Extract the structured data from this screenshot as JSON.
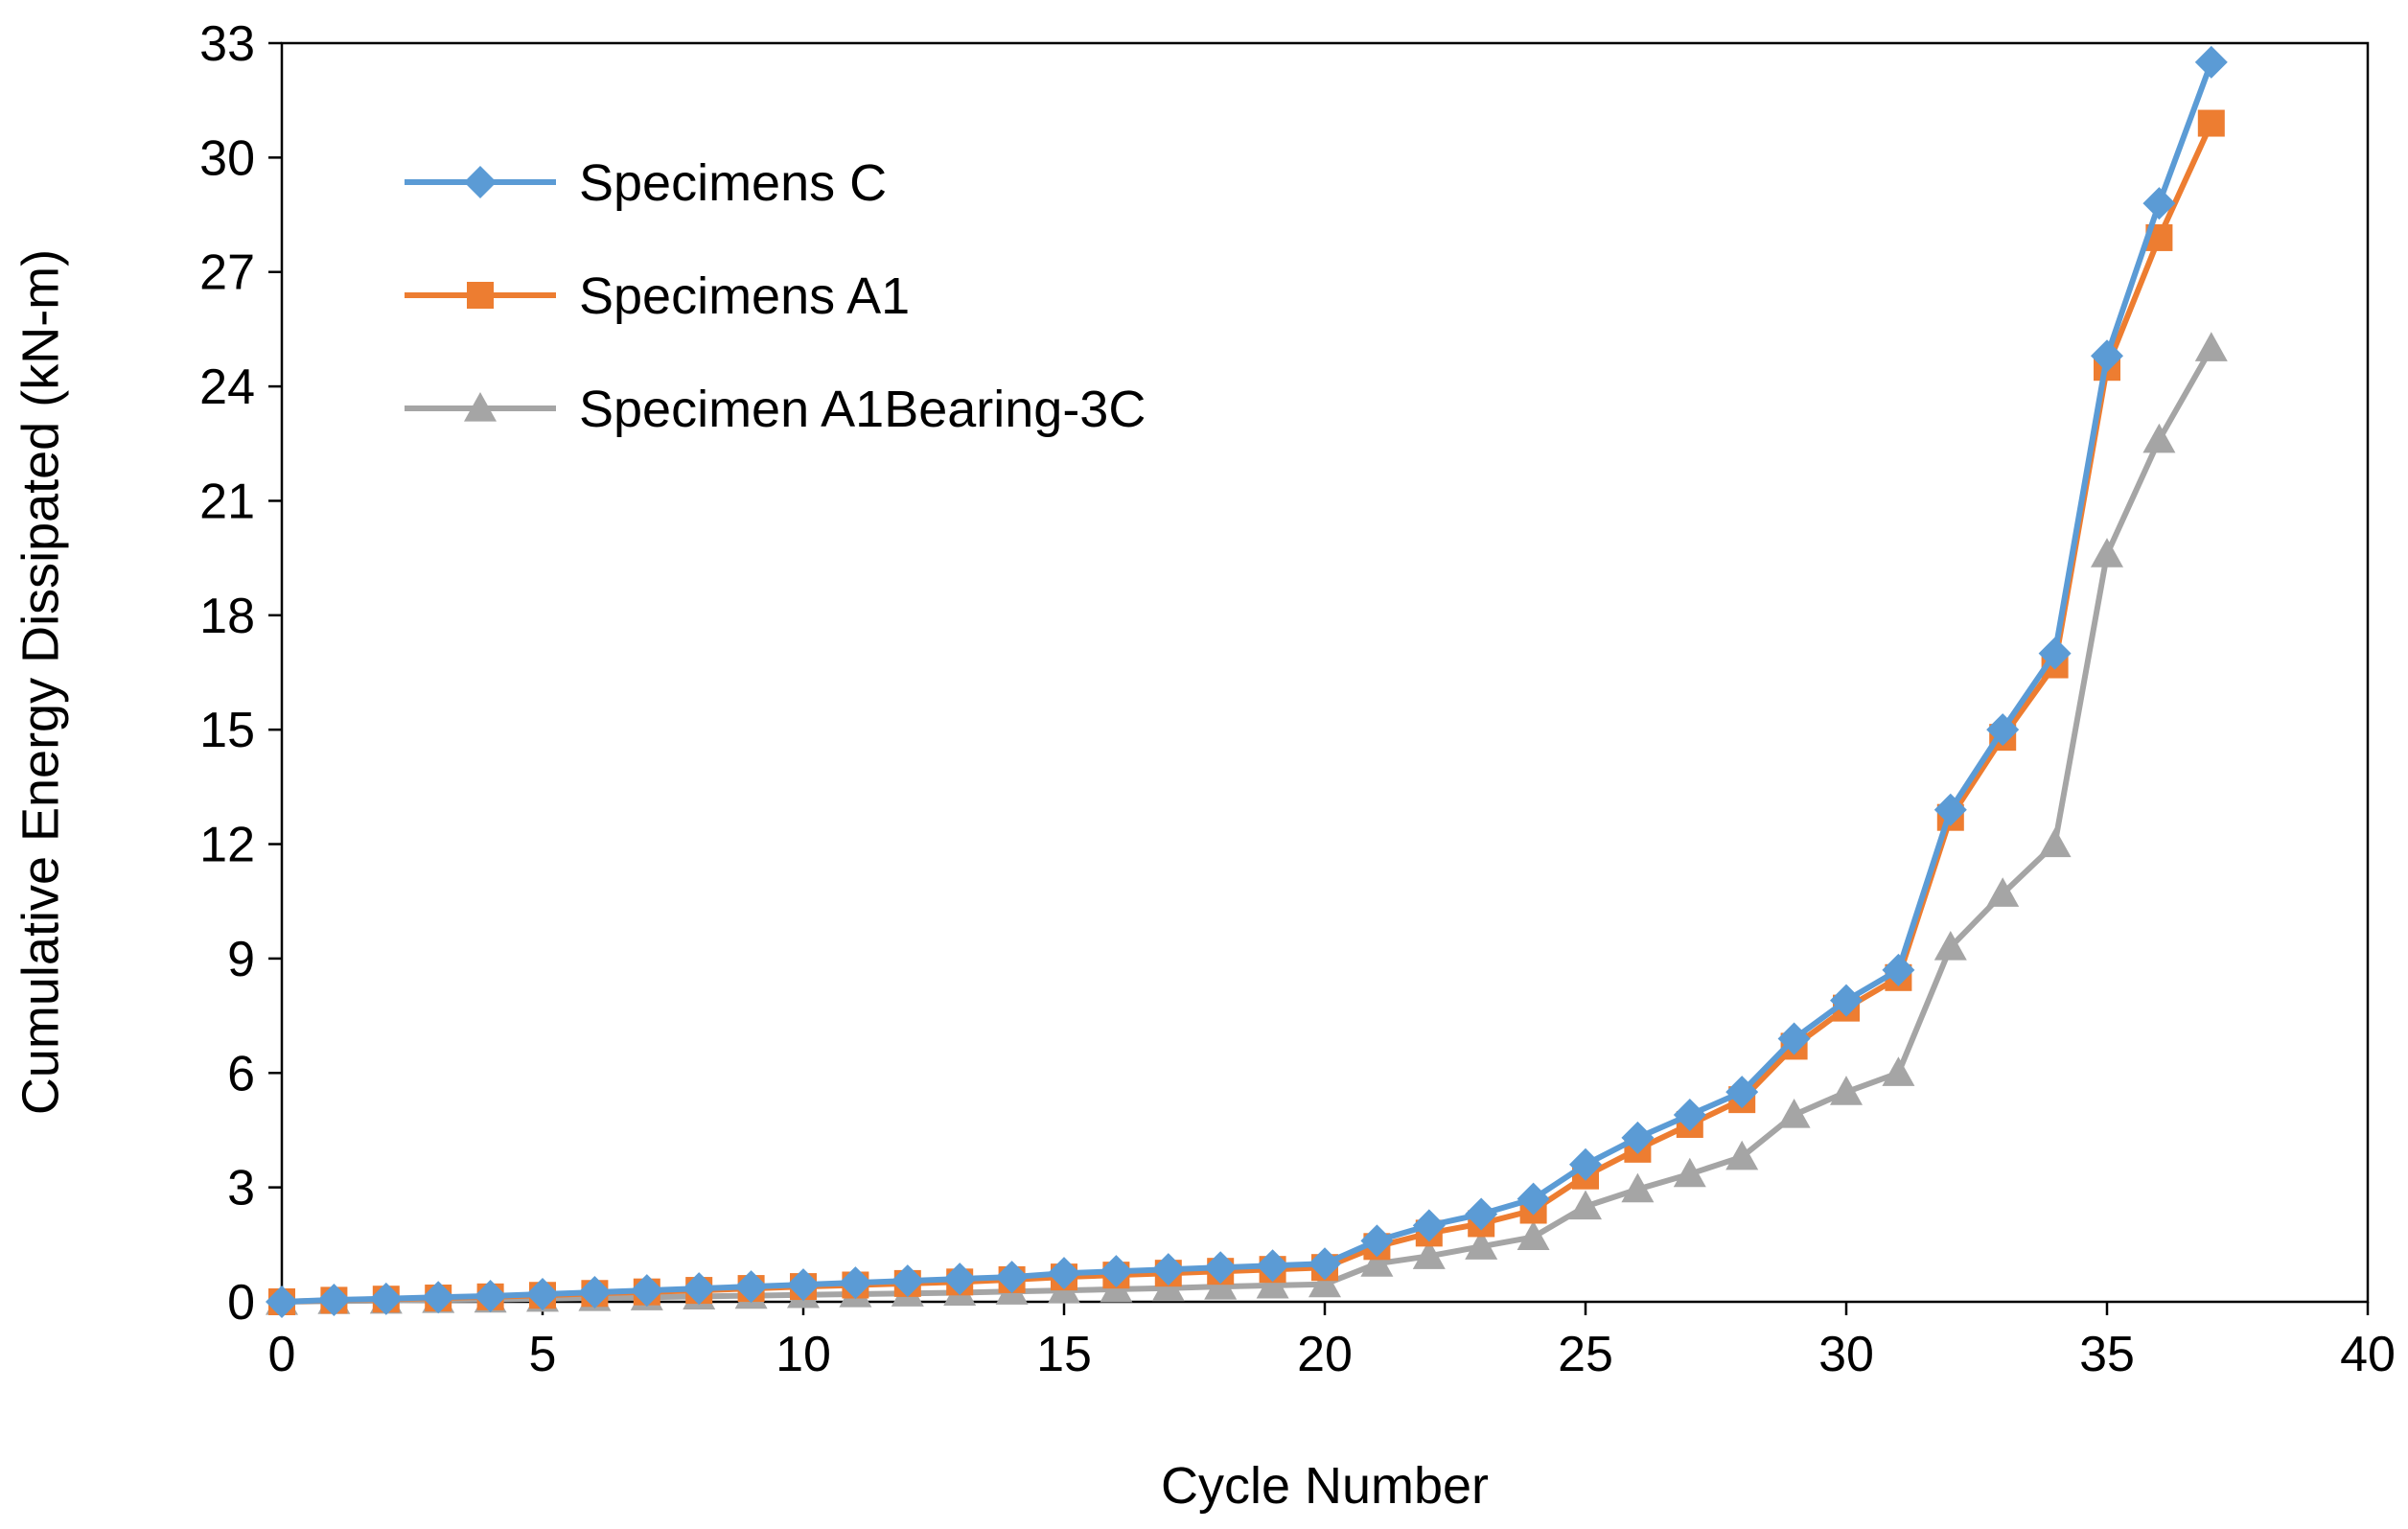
{
  "chart_data": {
    "type": "line",
    "title": "",
    "xlabel": "Cycle Number",
    "ylabel": "Cumulative Energy Dissipated (kN-m)",
    "xlim": [
      0,
      40
    ],
    "ylim": [
      0,
      33
    ],
    "xticks": [
      0,
      5,
      10,
      15,
      20,
      25,
      30,
      35,
      40
    ],
    "yticks": [
      0,
      3,
      6,
      9,
      12,
      15,
      18,
      21,
      24,
      27,
      30,
      33
    ],
    "grid": false,
    "legend": "top-left",
    "x": [
      0,
      1,
      2,
      3,
      4,
      5,
      6,
      7,
      8,
      9,
      10,
      11,
      12,
      13,
      14,
      15,
      16,
      17,
      18,
      19,
      20,
      21,
      22,
      23,
      24,
      25,
      26,
      27,
      28,
      29,
      30,
      31,
      32,
      33,
      34,
      35,
      36,
      37
    ],
    "series": [
      {
        "name": "Specimens C",
        "color": "#5B9BD5",
        "marker": "diamond",
        "values": [
          0,
          0.05,
          0.08,
          0.12,
          0.15,
          0.2,
          0.25,
          0.3,
          0.35,
          0.4,
          0.45,
          0.5,
          0.55,
          0.6,
          0.65,
          0.75,
          0.8,
          0.85,
          0.9,
          0.95,
          1.0,
          1.6,
          2.0,
          2.3,
          2.7,
          3.6,
          4.3,
          4.9,
          5.5,
          6.9,
          7.9,
          8.7,
          12.9,
          15.0,
          17.0,
          24.8,
          28.8,
          32.5
        ]
      },
      {
        "name": "Specimens A1",
        "color": "#ED7D31",
        "marker": "square",
        "values": [
          0,
          0.04,
          0.07,
          0.1,
          0.13,
          0.17,
          0.22,
          0.26,
          0.3,
          0.35,
          0.4,
          0.44,
          0.48,
          0.52,
          0.58,
          0.65,
          0.7,
          0.75,
          0.8,
          0.85,
          0.9,
          1.45,
          1.8,
          2.05,
          2.4,
          3.3,
          4.0,
          4.65,
          5.3,
          6.7,
          7.7,
          8.5,
          12.7,
          14.8,
          16.7,
          24.5,
          27.9,
          30.9
        ]
      },
      {
        "name": "Specimen A1Bearing-3C",
        "color": "#A5A5A5",
        "marker": "triangle",
        "values": [
          0,
          0.02,
          0.03,
          0.05,
          0.06,
          0.08,
          0.1,
          0.12,
          0.14,
          0.16,
          0.18,
          0.2,
          0.22,
          0.24,
          0.27,
          0.3,
          0.33,
          0.36,
          0.4,
          0.43,
          0.46,
          1.0,
          1.2,
          1.45,
          1.7,
          2.5,
          2.95,
          3.35,
          3.8,
          4.9,
          5.5,
          6.0,
          9.3,
          10.7,
          12.0,
          19.6,
          22.6,
          25.0
        ]
      }
    ]
  }
}
